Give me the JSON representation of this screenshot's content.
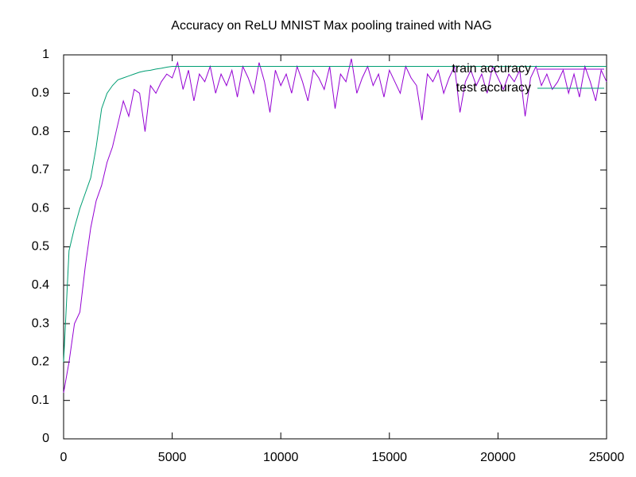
{
  "chart_data": {
    "type": "line",
    "title": "Accuracy on ReLU MNIST Max pooling trained with NAG",
    "x": [
      0,
      250,
      500,
      750,
      1000,
      1250,
      1500,
      1750,
      2000,
      2250,
      2500,
      2750,
      3000,
      3250,
      3500,
      3750,
      4000,
      4250,
      4500,
      4750,
      5000,
      5250,
      5500,
      5750,
      6000,
      6250,
      6500,
      6750,
      7000,
      7250,
      7500,
      7750,
      8000,
      8250,
      8500,
      8750,
      9000,
      9250,
      9500,
      9750,
      10000,
      10250,
      10500,
      10750,
      11000,
      11250,
      11500,
      11750,
      12000,
      12250,
      12500,
      12750,
      13000,
      13250,
      13500,
      13750,
      14000,
      14250,
      14500,
      14750,
      15000,
      15250,
      15500,
      15750,
      16000,
      16250,
      16500,
      16750,
      17000,
      17250,
      17500,
      17750,
      18000,
      18250,
      18500,
      18750,
      19000,
      19250,
      19500,
      19750,
      20000,
      20250,
      20500,
      20750,
      21000,
      21250,
      21500,
      21750,
      22000,
      22250,
      22500,
      22750,
      23000,
      23250,
      23500,
      23750,
      24000,
      24250,
      24500,
      24750,
      25000
    ],
    "series": [
      {
        "name": "train accuracy",
        "color": "#9400d3",
        "values": [
          0.12,
          0.2,
          0.3,
          0.33,
          0.45,
          0.55,
          0.62,
          0.66,
          0.72,
          0.76,
          0.82,
          0.88,
          0.84,
          0.91,
          0.9,
          0.8,
          0.92,
          0.9,
          0.93,
          0.95,
          0.94,
          0.98,
          0.91,
          0.96,
          0.88,
          0.95,
          0.93,
          0.97,
          0.9,
          0.95,
          0.92,
          0.96,
          0.89,
          0.97,
          0.94,
          0.9,
          0.98,
          0.93,
          0.85,
          0.96,
          0.92,
          0.95,
          0.9,
          0.97,
          0.93,
          0.88,
          0.96,
          0.94,
          0.91,
          0.97,
          0.86,
          0.95,
          0.93,
          0.99,
          0.9,
          0.94,
          0.97,
          0.92,
          0.95,
          0.89,
          0.96,
          0.93,
          0.9,
          0.97,
          0.94,
          0.92,
          0.83,
          0.95,
          0.93,
          0.96,
          0.9,
          0.94,
          0.97,
          0.85,
          0.93,
          0.96,
          0.92,
          0.95,
          0.9,
          0.97,
          0.94,
          0.91,
          0.95,
          0.93,
          0.96,
          0.84,
          0.94,
          0.97,
          0.92,
          0.95,
          0.91,
          0.93,
          0.96,
          0.9,
          0.95,
          0.89,
          0.97,
          0.93,
          0.88,
          0.96,
          0.93
        ]
      },
      {
        "name": "test accuracy",
        "color": "#009e73",
        "values": [
          0.2,
          0.49,
          0.55,
          0.6,
          0.64,
          0.68,
          0.76,
          0.86,
          0.9,
          0.92,
          0.935,
          0.94,
          0.945,
          0.95,
          0.955,
          0.958,
          0.96,
          0.963,
          0.965,
          0.968,
          0.97,
          0.97,
          0.97,
          0.97,
          0.97,
          0.97,
          0.97,
          0.97,
          0.97,
          0.97,
          0.97,
          0.97,
          0.97,
          0.97,
          0.97,
          0.97,
          0.97,
          0.97,
          0.97,
          0.97,
          0.97,
          0.97,
          0.97,
          0.97,
          0.97,
          0.97,
          0.97,
          0.97,
          0.97,
          0.97,
          0.97,
          0.97,
          0.97,
          0.97,
          0.97,
          0.97,
          0.97,
          0.97,
          0.97,
          0.97,
          0.97,
          0.97,
          0.97,
          0.97,
          0.97,
          0.97,
          0.97,
          0.97,
          0.97,
          0.97,
          0.97,
          0.97,
          0.97,
          0.97,
          0.97,
          0.97,
          0.97,
          0.97,
          0.97,
          0.97,
          0.97,
          0.97,
          0.97,
          0.97,
          0.97,
          0.97,
          0.97,
          0.97,
          0.97,
          0.97,
          0.97,
          0.97,
          0.97,
          0.97,
          0.97,
          0.97,
          0.97,
          0.97,
          0.97,
          0.97,
          0.97
        ]
      }
    ],
    "xlim": [
      0,
      25000
    ],
    "xticks": [
      0,
      5000,
      10000,
      15000,
      20000,
      25000
    ],
    "ylim": [
      0,
      1
    ],
    "yticks": [
      0,
      0.1,
      0.2,
      0.3,
      0.4,
      0.5,
      0.6,
      0.7,
      0.8,
      0.9,
      1
    ],
    "grid": false,
    "legend": "top-right"
  }
}
